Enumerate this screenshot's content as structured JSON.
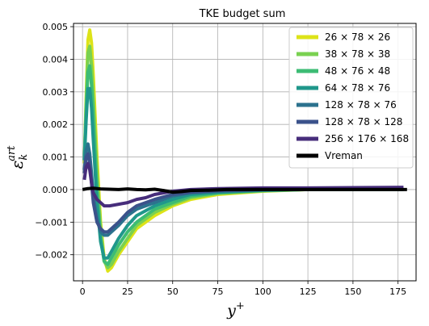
{
  "chart_data": {
    "type": "line",
    "title": "TKE budget sum",
    "xlabel": "y",
    "xlabel_sup": "+",
    "ylabel": "ε",
    "ylabel_sub": "k",
    "ylabel_sup": "art",
    "xlim": [
      -5,
      185
    ],
    "ylim": [
      -0.0028,
      0.0051
    ],
    "xticks": [
      0,
      25,
      50,
      75,
      100,
      125,
      150,
      175
    ],
    "xtick_labels": [
      "0",
      "25",
      "50",
      "75",
      "100",
      "125",
      "150",
      "175"
    ],
    "yticks": [
      -0.002,
      -0.001,
      0.0,
      0.001,
      0.002,
      0.003,
      0.004,
      0.005
    ],
    "ytick_labels": [
      "−0.002",
      "−0.001",
      "0.000",
      "0.001",
      "0.002",
      "0.003",
      "0.004",
      "0.005"
    ],
    "grid": true,
    "legend_position": "top-right",
    "series": [
      {
        "name": "26 × 78 × 26",
        "color": "#dde318",
        "x": [
          1,
          2,
          3,
          4,
          5,
          6,
          8,
          10,
          12,
          14,
          16,
          20,
          25,
          30,
          40,
          50,
          60,
          75,
          100,
          125,
          150,
          178
        ],
        "y": [
          0.0008,
          0.0028,
          0.0046,
          0.0049,
          0.0045,
          0.0035,
          0.001,
          -0.001,
          -0.0021,
          -0.0025,
          -0.0024,
          -0.002,
          -0.0016,
          -0.0012,
          -0.0008,
          -0.0005,
          -0.0003,
          -0.00015,
          -5e-05,
          0.0,
          0.0,
          0.0
        ]
      },
      {
        "name": "38 × 78 × 38",
        "color": "#7ad151",
        "x": [
          1,
          2,
          3,
          4,
          5,
          6,
          8,
          10,
          12,
          14,
          16,
          20,
          25,
          30,
          40,
          50,
          60,
          75,
          100,
          125,
          150,
          178
        ],
        "y": [
          0.0009,
          0.0026,
          0.0042,
          0.0044,
          0.0038,
          0.0028,
          0.0005,
          -0.0012,
          -0.0022,
          -0.0024,
          -0.0023,
          -0.0019,
          -0.0015,
          -0.0011,
          -0.0007,
          -0.00045,
          -0.00025,
          -0.00012,
          -4e-05,
          0.0,
          0.0,
          0.0
        ]
      },
      {
        "name": "48 × 76 × 48",
        "color": "#3dbc74",
        "x": [
          1,
          2,
          3,
          4,
          5,
          6,
          8,
          10,
          12,
          14,
          16,
          20,
          25,
          30,
          40,
          50,
          60,
          75,
          100,
          125,
          150,
          178
        ],
        "y": [
          0.0009,
          0.0024,
          0.0036,
          0.0038,
          0.0032,
          0.0022,
          0.0,
          -0.0015,
          -0.0022,
          -0.0023,
          -0.0021,
          -0.0017,
          -0.0013,
          -0.001,
          -0.0006,
          -0.0004,
          -0.0002,
          -0.0001,
          -3e-05,
          0.0,
          0.0,
          0.0
        ]
      },
      {
        "name": "64 × 78 × 76",
        "color": "#1f978b",
        "x": [
          1,
          2,
          3,
          4,
          5,
          6,
          8,
          10,
          12,
          14,
          16,
          20,
          25,
          30,
          40,
          50,
          60,
          75,
          100,
          125,
          150,
          178
        ],
        "y": [
          0.0009,
          0.0021,
          0.0031,
          0.0031,
          0.0025,
          0.0015,
          -0.0004,
          -0.0016,
          -0.0021,
          -0.0021,
          -0.0019,
          -0.0015,
          -0.0011,
          -0.0008,
          -0.0005,
          -0.0003,
          -0.00015,
          -8e-05,
          -2e-05,
          0.0,
          0.0,
          0.0
        ]
      },
      {
        "name": "128 × 78 × 76",
        "color": "#2c728e",
        "x": [
          1,
          2,
          3,
          4,
          5,
          6,
          8,
          10,
          12,
          14,
          16,
          20,
          25,
          30,
          40,
          50,
          60,
          75,
          100,
          125,
          150,
          178
        ],
        "y": [
          0.0006,
          0.0012,
          0.0014,
          0.0011,
          0.0005,
          -0.0002,
          -0.0009,
          -0.0013,
          -0.0014,
          -0.0014,
          -0.0013,
          -0.0011,
          -0.0008,
          -0.0006,
          -0.0004,
          -0.0002,
          -0.0001,
          -5e-05,
          -1e-05,
          1e-05,
          2e-05,
          3e-05
        ]
      },
      {
        "name": "128 × 78 × 128",
        "color": "#3b528b",
        "x": [
          1,
          2,
          3,
          4,
          5,
          6,
          8,
          10,
          12,
          14,
          16,
          20,
          25,
          30,
          40,
          50,
          60,
          75,
          100,
          125,
          150,
          178
        ],
        "y": [
          0.0005,
          0.001,
          0.0011,
          0.0008,
          0.0002,
          -0.0004,
          -0.001,
          -0.0012,
          -0.0013,
          -0.0013,
          -0.0012,
          -0.001,
          -0.0007,
          -0.0005,
          -0.0003,
          -0.00015,
          -8e-05,
          -3e-05,
          0.0,
          1e-05,
          2e-05,
          3e-05
        ]
      },
      {
        "name": "256 × 176 × 168",
        "color": "#472d7b",
        "x": [
          1,
          2,
          3,
          4,
          5,
          6,
          8,
          10,
          12,
          15,
          20,
          25,
          30,
          35,
          40,
          50,
          60,
          75,
          100,
          125,
          150,
          178
        ],
        "y": [
          0.0003,
          0.0007,
          0.0008,
          0.0006,
          0.0002,
          -0.0001,
          -0.0003,
          -0.0004,
          -0.0005,
          -0.0005,
          -0.00045,
          -0.0004,
          -0.0003,
          -0.00025,
          -0.00015,
          -5e-05,
          0.0,
          3e-05,
          5e-05,
          5e-05,
          6e-05,
          7e-05
        ]
      },
      {
        "name": "Vreman",
        "color": "#000000",
        "x": [
          0,
          3,
          6,
          10,
          15,
          20,
          25,
          30,
          35,
          40,
          45,
          50,
          55,
          60,
          70,
          80,
          90,
          100,
          120,
          140,
          160,
          180
        ],
        "y": [
          0.0,
          3e-05,
          4e-05,
          2e-05,
          1e-05,
          0.0,
          2e-05,
          0.0,
          -1e-05,
          1e-05,
          -3e-05,
          -8e-05,
          -6e-05,
          -3e-05,
          -2e-05,
          0.0,
          0.0,
          0.0,
          0.0,
          0.0,
          0.0,
          0.0
        ]
      }
    ]
  }
}
